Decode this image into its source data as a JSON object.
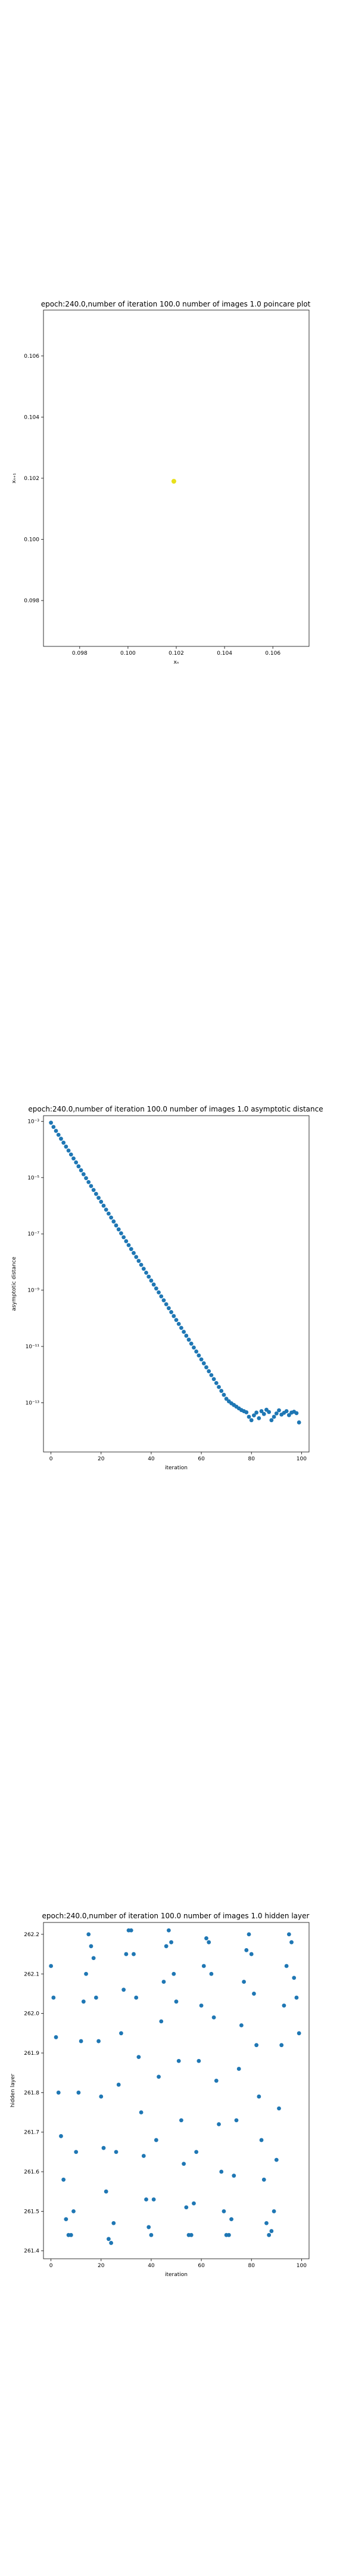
{
  "charts_meta": {
    "colors": {
      "series": "#1f77b4",
      "poincare_point": "#e8e01a",
      "axes": "#000000"
    }
  },
  "chart_data": [
    {
      "type": "scatter",
      "title": "epoch:240.0,number of iteration 100.0 number of images 1.0 poincare plot",
      "xlabel": "xₙ",
      "ylabel": "xₙ₊₁",
      "xlim": [
        0.0965,
        0.1075
      ],
      "ylim": [
        0.0965,
        0.1075
      ],
      "xticks": [
        0.098,
        0.1,
        0.102,
        0.104,
        0.106
      ],
      "yticks": [
        0.098,
        0.1,
        0.102,
        0.104,
        0.106
      ],
      "tick_labels": [
        "0.098",
        "0.100",
        "0.102",
        "0.104",
        "0.106"
      ],
      "grid": false,
      "points": [
        [
          0.1019,
          0.1019
        ]
      ]
    },
    {
      "type": "scatter",
      "title": "epoch:240.0,number of iteration 100.0  number of images 1.0 asymptotic distance",
      "xlabel": "iteration",
      "ylabel": "asymptotic distance",
      "xlim": [
        -3,
        103
      ],
      "ylim_log10": [
        -14.75,
        -2.8
      ],
      "yscale": "log",
      "xticks": [
        0,
        20,
        40,
        60,
        80,
        100
      ],
      "xtick_labels": [
        "0",
        "20",
        "40",
        "60",
        "80",
        "100"
      ],
      "yticks_log10": [
        -3,
        -5,
        -7,
        -9,
        -11,
        -13
      ],
      "ytick_labels": [
        "10⁻³",
        "10⁻⁵",
        "10⁻⁷",
        "10⁻⁹",
        "10⁻¹¹",
        "10⁻¹³"
      ],
      "grid": false,
      "x": [
        0,
        1,
        2,
        3,
        4,
        5,
        6,
        7,
        8,
        9,
        10,
        11,
        12,
        13,
        14,
        15,
        16,
        17,
        18,
        19,
        20,
        21,
        22,
        23,
        24,
        25,
        26,
        27,
        28,
        29,
        30,
        31,
        32,
        33,
        34,
        35,
        36,
        37,
        38,
        39,
        40,
        41,
        42,
        43,
        44,
        45,
        46,
        47,
        48,
        49,
        50,
        51,
        52,
        53,
        54,
        55,
        56,
        57,
        58,
        59,
        60,
        61,
        62,
        63,
        64,
        65,
        66,
        67,
        68,
        69,
        70,
        71,
        72,
        73,
        74,
        75,
        76,
        77,
        78,
        79,
        80,
        81,
        82,
        83,
        84,
        85,
        86,
        87,
        88,
        89,
        90,
        91,
        92,
        93,
        94,
        95,
        96,
        97,
        98,
        99
      ],
      "y_log10": [
        -3.05,
        -3.2,
        -3.34,
        -3.48,
        -3.62,
        -3.76,
        -3.9,
        -4.04,
        -4.18,
        -4.32,
        -4.46,
        -4.6,
        -4.74,
        -4.88,
        -5.02,
        -5.16,
        -5.3,
        -5.44,
        -5.58,
        -5.72,
        -5.86,
        -6.0,
        -6.14,
        -6.28,
        -6.42,
        -6.56,
        -6.7,
        -6.84,
        -6.98,
        -7.12,
        -7.26,
        -7.4,
        -7.54,
        -7.68,
        -7.82,
        -7.96,
        -8.1,
        -8.24,
        -8.38,
        -8.52,
        -8.66,
        -8.8,
        -8.94,
        -9.08,
        -9.22,
        -9.36,
        -9.5,
        -9.64,
        -9.78,
        -9.92,
        -10.06,
        -10.2,
        -10.34,
        -10.48,
        -10.62,
        -10.76,
        -10.9,
        -11.04,
        -11.18,
        -11.32,
        -11.46,
        -11.6,
        -11.74,
        -11.88,
        -12.02,
        -12.16,
        -12.3,
        -12.44,
        -12.58,
        -12.72,
        -12.86,
        -12.95,
        -13.02,
        -13.08,
        -13.14,
        -13.2,
        -13.26,
        -13.3,
        -13.34,
        -13.5,
        -13.62,
        -13.45,
        -13.35,
        -13.55,
        -13.3,
        -13.4,
        -13.25,
        -13.33,
        -13.62,
        -13.5,
        -13.38,
        -13.27,
        -13.42,
        -13.36,
        -13.3,
        -13.44,
        -13.35,
        -13.32,
        -13.37,
        -13.7
      ]
    },
    {
      "type": "scatter",
      "title": "epoch:240.0,number of iteration 100.0  number of images 1.0 hidden layer",
      "xlabel": "iteration",
      "ylabel": "hidden layer",
      "xlim": [
        -3,
        103
      ],
      "ylim": [
        261.38,
        262.23
      ],
      "xticks": [
        0,
        20,
        40,
        60,
        80,
        100
      ],
      "xtick_labels": [
        "0",
        "20",
        "40",
        "60",
        "80",
        "100"
      ],
      "yticks": [
        261.4,
        261.5,
        261.6,
        261.7,
        261.8,
        261.9,
        262.0,
        262.1,
        262.2
      ],
      "ytick_labels": [
        "261.4",
        "261.5",
        "261.6",
        "261.7",
        "261.8",
        "261.9",
        "262.0",
        "262.1",
        "262.2"
      ],
      "grid": false,
      "x": [
        0,
        1,
        2,
        3,
        4,
        5,
        6,
        7,
        8,
        9,
        10,
        11,
        12,
        13,
        14,
        15,
        16,
        17,
        18,
        19,
        20,
        21,
        22,
        23,
        24,
        25,
        26,
        27,
        28,
        29,
        30,
        31,
        32,
        33,
        34,
        35,
        36,
        37,
        38,
        39,
        40,
        41,
        42,
        43,
        44,
        45,
        46,
        47,
        48,
        49,
        50,
        51,
        52,
        53,
        54,
        55,
        56,
        57,
        58,
        59,
        60,
        61,
        62,
        63,
        64,
        65,
        66,
        67,
        68,
        69,
        70,
        71,
        72,
        73,
        74,
        75,
        76,
        77,
        78,
        79,
        80,
        81,
        82,
        83,
        84,
        85,
        86,
        87,
        88,
        89,
        90,
        91,
        92,
        93,
        94,
        95,
        96,
        97,
        98,
        99
      ],
      "y": [
        262.12,
        262.04,
        261.94,
        261.8,
        261.69,
        261.58,
        261.48,
        261.44,
        261.44,
        261.5,
        261.65,
        261.8,
        261.93,
        262.03,
        262.1,
        262.2,
        262.17,
        262.14,
        262.04,
        261.93,
        261.79,
        261.66,
        261.55,
        261.43,
        261.42,
        261.47,
        261.65,
        261.82,
        261.95,
        262.06,
        262.15,
        262.21,
        262.21,
        262.15,
        262.04,
        261.89,
        261.75,
        261.64,
        261.53,
        261.46,
        261.44,
        261.53,
        261.68,
        261.84,
        261.98,
        262.08,
        262.17,
        262.21,
        262.18,
        262.1,
        262.03,
        261.88,
        261.73,
        261.62,
        261.51,
        261.44,
        261.44,
        261.52,
        261.65,
        261.88,
        262.02,
        262.12,
        262.19,
        262.18,
        262.1,
        261.99,
        261.83,
        261.72,
        261.6,
        261.5,
        261.44,
        261.44,
        261.48,
        261.59,
        261.73,
        261.86,
        261.97,
        262.08,
        262.16,
        262.2,
        262.15,
        262.05,
        261.92,
        261.79,
        261.68,
        261.58,
        261.47,
        261.44,
        261.45,
        261.5,
        261.63,
        261.76,
        261.92,
        262.02,
        262.12,
        262.2,
        262.18,
        262.09,
        262.04,
        261.95
      ]
    }
  ]
}
